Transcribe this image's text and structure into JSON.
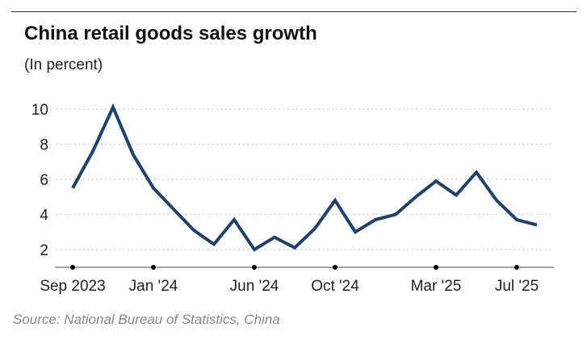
{
  "chart_data": {
    "type": "line",
    "title": "China retail goods sales growth",
    "subtitle": "(In percent)",
    "source": "Source: National Bureau of Statistics, China",
    "x": [
      "2023-09",
      "2023-10",
      "2023-11",
      "2023-12",
      "2024-01",
      "2024-02",
      "2024-03",
      "2024-04",
      "2024-05",
      "2024-06",
      "2024-07",
      "2024-08",
      "2024-09",
      "2024-10",
      "2024-11",
      "2024-12",
      "2025-01",
      "2025-02",
      "2025-03",
      "2025-04",
      "2025-05",
      "2025-06",
      "2025-07",
      "2025-08"
    ],
    "values": [
      5.5,
      7.6,
      10.1,
      7.4,
      5.5,
      4.3,
      3.1,
      2.3,
      3.7,
      2.0,
      2.7,
      2.1,
      3.2,
      4.8,
      3.0,
      3.7,
      4.0,
      5.0,
      5.9,
      5.1,
      6.4,
      4.8,
      3.7,
      3.4
    ],
    "xticks": [
      {
        "label": "Sep 2023",
        "x": "2023-09"
      },
      {
        "label": "Jan '24",
        "x": "2024-01"
      },
      {
        "label": "Jun '24",
        "x": "2024-06"
      },
      {
        "label": "Oct '24",
        "x": "2024-10"
      },
      {
        "label": "Mar '25",
        "x": "2025-03"
      },
      {
        "label": "Jul '25",
        "x": "2025-07"
      }
    ],
    "yticks": [
      2,
      4,
      6,
      8,
      10
    ],
    "ylim": [
      1,
      10.5
    ],
    "grid": true,
    "line_color": "#1f4266"
  }
}
